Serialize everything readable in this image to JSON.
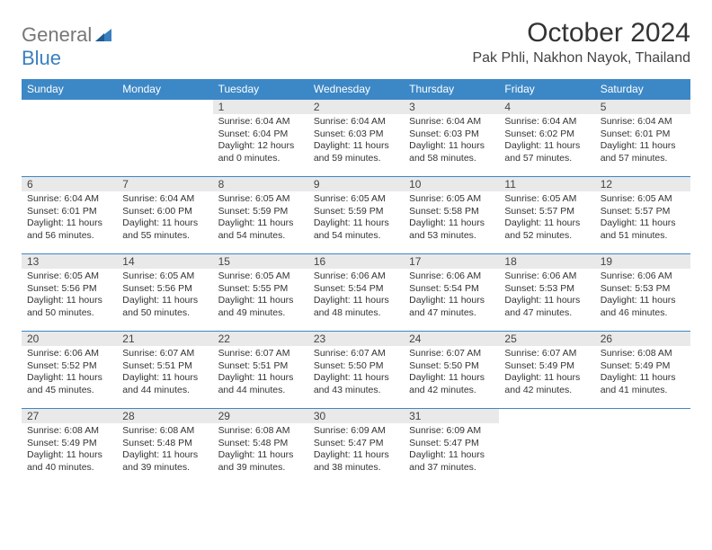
{
  "logo": {
    "text1": "General",
    "text2": "Blue"
  },
  "title": "October 2024",
  "location": "Pak Phli, Nakhon Nayok, Thailand",
  "weekdays": [
    "Sunday",
    "Monday",
    "Tuesday",
    "Wednesday",
    "Thursday",
    "Friday",
    "Saturday"
  ],
  "header_bg": "#3c88c6",
  "daynum_bg": "#e9e9e9",
  "border_color": "#3c88c6",
  "weeks": [
    [
      {
        "num": "",
        "sunrise": "",
        "sunset": "",
        "daylight": ""
      },
      {
        "num": "",
        "sunrise": "",
        "sunset": "",
        "daylight": ""
      },
      {
        "num": "1",
        "sunrise": "Sunrise: 6:04 AM",
        "sunset": "Sunset: 6:04 PM",
        "daylight": "Daylight: 12 hours and 0 minutes."
      },
      {
        "num": "2",
        "sunrise": "Sunrise: 6:04 AM",
        "sunset": "Sunset: 6:03 PM",
        "daylight": "Daylight: 11 hours and 59 minutes."
      },
      {
        "num": "3",
        "sunrise": "Sunrise: 6:04 AM",
        "sunset": "Sunset: 6:03 PM",
        "daylight": "Daylight: 11 hours and 58 minutes."
      },
      {
        "num": "4",
        "sunrise": "Sunrise: 6:04 AM",
        "sunset": "Sunset: 6:02 PM",
        "daylight": "Daylight: 11 hours and 57 minutes."
      },
      {
        "num": "5",
        "sunrise": "Sunrise: 6:04 AM",
        "sunset": "Sunset: 6:01 PM",
        "daylight": "Daylight: 11 hours and 57 minutes."
      }
    ],
    [
      {
        "num": "6",
        "sunrise": "Sunrise: 6:04 AM",
        "sunset": "Sunset: 6:01 PM",
        "daylight": "Daylight: 11 hours and 56 minutes."
      },
      {
        "num": "7",
        "sunrise": "Sunrise: 6:04 AM",
        "sunset": "Sunset: 6:00 PM",
        "daylight": "Daylight: 11 hours and 55 minutes."
      },
      {
        "num": "8",
        "sunrise": "Sunrise: 6:05 AM",
        "sunset": "Sunset: 5:59 PM",
        "daylight": "Daylight: 11 hours and 54 minutes."
      },
      {
        "num": "9",
        "sunrise": "Sunrise: 6:05 AM",
        "sunset": "Sunset: 5:59 PM",
        "daylight": "Daylight: 11 hours and 54 minutes."
      },
      {
        "num": "10",
        "sunrise": "Sunrise: 6:05 AM",
        "sunset": "Sunset: 5:58 PM",
        "daylight": "Daylight: 11 hours and 53 minutes."
      },
      {
        "num": "11",
        "sunrise": "Sunrise: 6:05 AM",
        "sunset": "Sunset: 5:57 PM",
        "daylight": "Daylight: 11 hours and 52 minutes."
      },
      {
        "num": "12",
        "sunrise": "Sunrise: 6:05 AM",
        "sunset": "Sunset: 5:57 PM",
        "daylight": "Daylight: 11 hours and 51 minutes."
      }
    ],
    [
      {
        "num": "13",
        "sunrise": "Sunrise: 6:05 AM",
        "sunset": "Sunset: 5:56 PM",
        "daylight": "Daylight: 11 hours and 50 minutes."
      },
      {
        "num": "14",
        "sunrise": "Sunrise: 6:05 AM",
        "sunset": "Sunset: 5:56 PM",
        "daylight": "Daylight: 11 hours and 50 minutes."
      },
      {
        "num": "15",
        "sunrise": "Sunrise: 6:05 AM",
        "sunset": "Sunset: 5:55 PM",
        "daylight": "Daylight: 11 hours and 49 minutes."
      },
      {
        "num": "16",
        "sunrise": "Sunrise: 6:06 AM",
        "sunset": "Sunset: 5:54 PM",
        "daylight": "Daylight: 11 hours and 48 minutes."
      },
      {
        "num": "17",
        "sunrise": "Sunrise: 6:06 AM",
        "sunset": "Sunset: 5:54 PM",
        "daylight": "Daylight: 11 hours and 47 minutes."
      },
      {
        "num": "18",
        "sunrise": "Sunrise: 6:06 AM",
        "sunset": "Sunset: 5:53 PM",
        "daylight": "Daylight: 11 hours and 47 minutes."
      },
      {
        "num": "19",
        "sunrise": "Sunrise: 6:06 AM",
        "sunset": "Sunset: 5:53 PM",
        "daylight": "Daylight: 11 hours and 46 minutes."
      }
    ],
    [
      {
        "num": "20",
        "sunrise": "Sunrise: 6:06 AM",
        "sunset": "Sunset: 5:52 PM",
        "daylight": "Daylight: 11 hours and 45 minutes."
      },
      {
        "num": "21",
        "sunrise": "Sunrise: 6:07 AM",
        "sunset": "Sunset: 5:51 PM",
        "daylight": "Daylight: 11 hours and 44 minutes."
      },
      {
        "num": "22",
        "sunrise": "Sunrise: 6:07 AM",
        "sunset": "Sunset: 5:51 PM",
        "daylight": "Daylight: 11 hours and 44 minutes."
      },
      {
        "num": "23",
        "sunrise": "Sunrise: 6:07 AM",
        "sunset": "Sunset: 5:50 PM",
        "daylight": "Daylight: 11 hours and 43 minutes."
      },
      {
        "num": "24",
        "sunrise": "Sunrise: 6:07 AM",
        "sunset": "Sunset: 5:50 PM",
        "daylight": "Daylight: 11 hours and 42 minutes."
      },
      {
        "num": "25",
        "sunrise": "Sunrise: 6:07 AM",
        "sunset": "Sunset: 5:49 PM",
        "daylight": "Daylight: 11 hours and 42 minutes."
      },
      {
        "num": "26",
        "sunrise": "Sunrise: 6:08 AM",
        "sunset": "Sunset: 5:49 PM",
        "daylight": "Daylight: 11 hours and 41 minutes."
      }
    ],
    [
      {
        "num": "27",
        "sunrise": "Sunrise: 6:08 AM",
        "sunset": "Sunset: 5:49 PM",
        "daylight": "Daylight: 11 hours and 40 minutes."
      },
      {
        "num": "28",
        "sunrise": "Sunrise: 6:08 AM",
        "sunset": "Sunset: 5:48 PM",
        "daylight": "Daylight: 11 hours and 39 minutes."
      },
      {
        "num": "29",
        "sunrise": "Sunrise: 6:08 AM",
        "sunset": "Sunset: 5:48 PM",
        "daylight": "Daylight: 11 hours and 39 minutes."
      },
      {
        "num": "30",
        "sunrise": "Sunrise: 6:09 AM",
        "sunset": "Sunset: 5:47 PM",
        "daylight": "Daylight: 11 hours and 38 minutes."
      },
      {
        "num": "31",
        "sunrise": "Sunrise: 6:09 AM",
        "sunset": "Sunset: 5:47 PM",
        "daylight": "Daylight: 11 hours and 37 minutes."
      },
      {
        "num": "",
        "sunrise": "",
        "sunset": "",
        "daylight": ""
      },
      {
        "num": "",
        "sunrise": "",
        "sunset": "",
        "daylight": ""
      }
    ]
  ]
}
